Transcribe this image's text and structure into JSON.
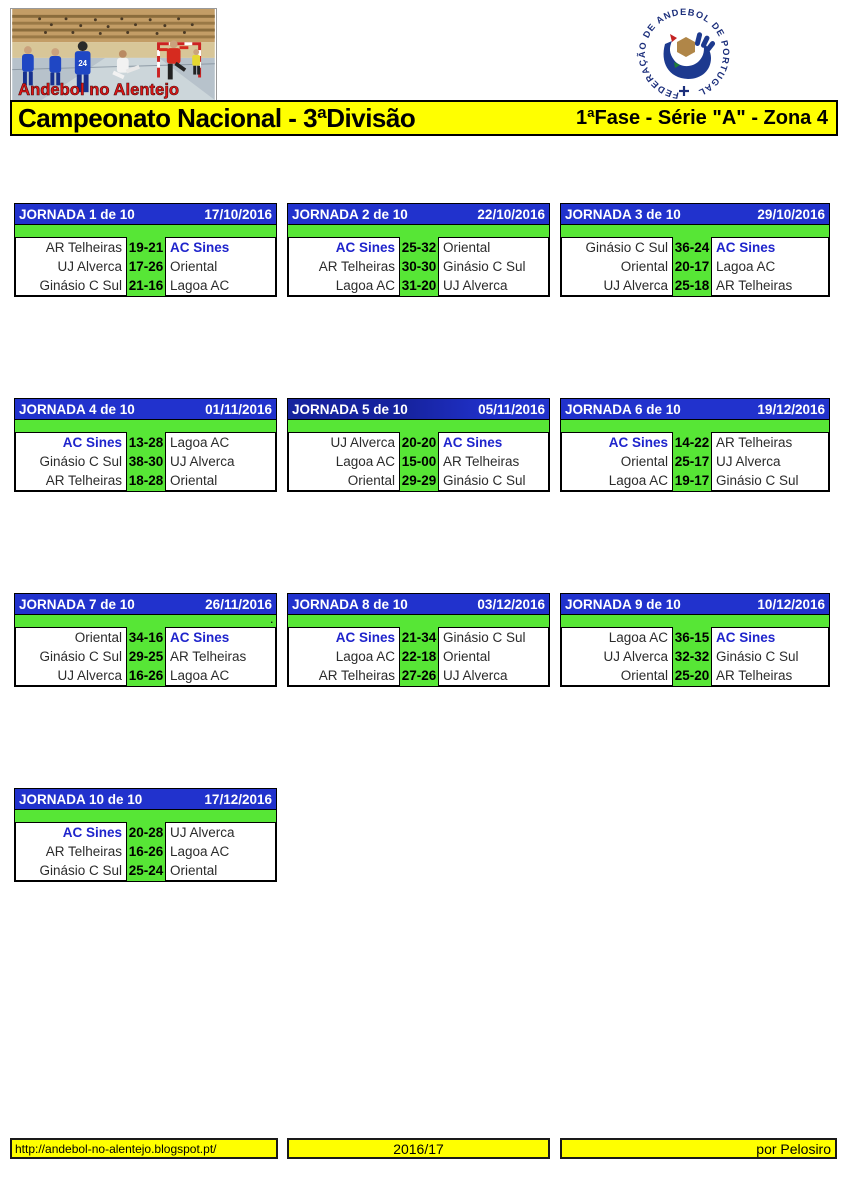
{
  "branding": {
    "photo_caption": "Andebol no Alentejo",
    "federation_logo_text": "FEDERAÇÃO DE ANDEBOL DE PORTUGAL"
  },
  "title_bar": {
    "left": "Campeonato Nacional - 3ªDivisão",
    "right": "1ªFase - Série \"A\" - Zona 4"
  },
  "highlight_team": "AC Sines",
  "jornadas": [
    {
      "label": "JORNADA 1 de 10",
      "date": "17/10/2016",
      "matches": [
        {
          "home": "AR Telheiras",
          "score": "19-21",
          "away": "AC Sines"
        },
        {
          "home": "UJ Alverca",
          "score": "17-26",
          "away": "Oriental"
        },
        {
          "home": "Ginásio C Sul",
          "score": "21-16",
          "away": "Lagoa AC"
        }
      ]
    },
    {
      "label": "JORNADA 2 de 10",
      "date": "22/10/2016",
      "matches": [
        {
          "home": "AC Sines",
          "score": "25-32",
          "away": "Oriental"
        },
        {
          "home": "AR Telheiras",
          "score": "30-30",
          "away": "Ginásio C Sul"
        },
        {
          "home": "Lagoa AC",
          "score": "31-20",
          "away": "UJ Alverca"
        }
      ]
    },
    {
      "label": "JORNADA 3 de 10",
      "date": "29/10/2016",
      "matches": [
        {
          "home": "Ginásio C Sul",
          "score": "36-24",
          "away": "AC Sines"
        },
        {
          "home": "Oriental",
          "score": "20-17",
          "away": "Lagoa AC"
        },
        {
          "home": "UJ Alverca",
          "score": "25-18",
          "away": "AR Telheiras"
        }
      ]
    },
    {
      "label": "JORNADA 4 de 10",
      "date": "01/11/2016",
      "matches": [
        {
          "home": "AC Sines",
          "score": "13-28",
          "away": "Lagoa AC"
        },
        {
          "home": "Ginásio C Sul",
          "score": "38-30",
          "away": "UJ Alverca"
        },
        {
          "home": "AR Telheiras",
          "score": "18-28",
          "away": "Oriental"
        }
      ]
    },
    {
      "label": "JORNADA 5 de 10",
      "date": "05/11/2016",
      "matches": [
        {
          "home": "UJ Alverca",
          "score": "20-20",
          "away": "AC Sines"
        },
        {
          "home": "Lagoa AC",
          "score": "15-00",
          "away": "AR Telheiras"
        },
        {
          "home": "Oriental",
          "score": "29-29",
          "away": "Ginásio C Sul"
        }
      ]
    },
    {
      "label": "JORNADA 6 de 10",
      "date": "19/12/2016",
      "matches": [
        {
          "home": "AC Sines",
          "score": "14-22",
          "away": "AR Telheiras"
        },
        {
          "home": "Oriental",
          "score": "25-17",
          "away": "UJ Alverca"
        },
        {
          "home": "Lagoa AC",
          "score": "19-17",
          "away": "Ginásio C Sul"
        }
      ]
    },
    {
      "label": "JORNADA 7 de 10",
      "date": "26/11/2016",
      "note": ".",
      "matches": [
        {
          "home": "Oriental",
          "score": "34-16",
          "away": "AC Sines"
        },
        {
          "home": "Ginásio C Sul",
          "score": "29-25",
          "away": "AR Telheiras"
        },
        {
          "home": "UJ Alverca",
          "score": "16-26",
          "away": "Lagoa AC"
        }
      ]
    },
    {
      "label": "JORNADA 8 de 10",
      "date": "03/12/2016",
      "matches": [
        {
          "home": "AC Sines",
          "score": "21-34",
          "away": "Ginásio C Sul"
        },
        {
          "home": "Lagoa AC",
          "score": "22-18",
          "away": "Oriental"
        },
        {
          "home": "AR Telheiras",
          "score": "27-26",
          "away": "UJ Alverca"
        }
      ]
    },
    {
      "label": "JORNADA 9 de 10",
      "date": "10/12/2016",
      "matches": [
        {
          "home": "Lagoa AC",
          "score": "36-15",
          "away": "AC Sines"
        },
        {
          "home": "UJ Alverca",
          "score": "32-32",
          "away": "Ginásio C Sul"
        },
        {
          "home": "Oriental",
          "score": "25-20",
          "away": "AR Telheiras"
        }
      ]
    },
    {
      "label": "JORNADA 10 de 10",
      "date": "17/12/2016",
      "matches": [
        {
          "home": "AC Sines",
          "score": "20-28",
          "away": "UJ Alverca"
        },
        {
          "home": "AR Telheiras",
          "score": "16-26",
          "away": "Lagoa AC"
        },
        {
          "home": "Ginásio C Sul",
          "score": "25-24",
          "away": "Oriental"
        }
      ]
    }
  ],
  "footer": {
    "url": "http://andebol-no-alentejo.blogspot.pt/",
    "season": "2016/17",
    "credit": "por Pelosiro"
  },
  "colors": {
    "header_blue": "#2132cd",
    "header_blue_dark": "#16239e",
    "lime_green": "#57e636",
    "banner_yellow": "#ffff00",
    "team_accent_blue": "#1f24cc"
  }
}
